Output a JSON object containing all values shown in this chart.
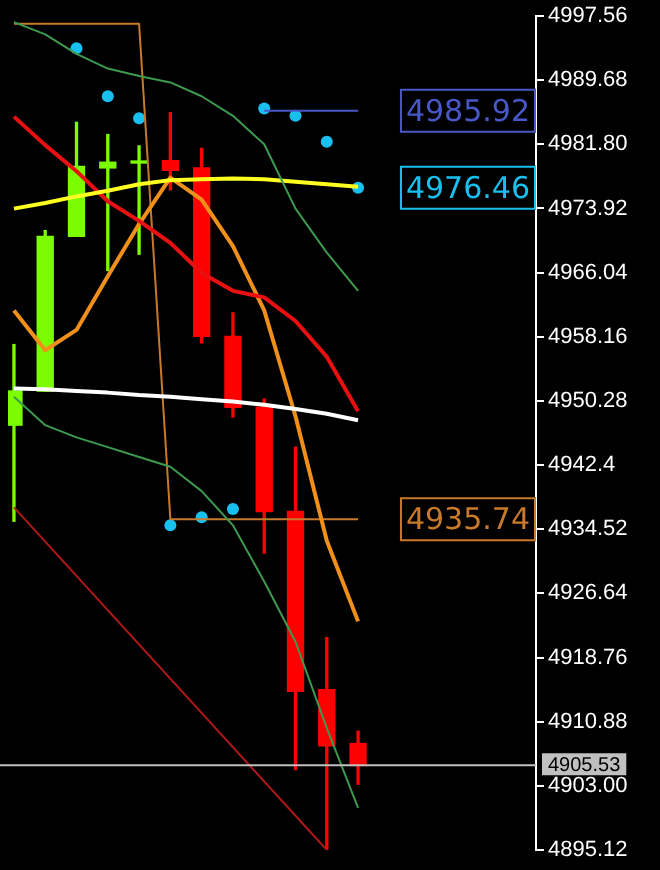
{
  "chart_data": {
    "type": "candlestick",
    "categories": [
      null,
      null,
      null,
      null,
      null,
      null,
      null,
      null,
      null,
      null,
      null,
      null
    ],
    "ohlc": [
      [
        4947.3,
        4957.2,
        4935.5,
        4951.5
      ],
      [
        4951.5,
        4971.2,
        4951.5,
        4970.5
      ],
      [
        4970.5,
        4984.5,
        4970.5,
        4979.1
      ],
      [
        4978.9,
        4983.0,
        4966.3,
        4979.6
      ],
      [
        4979.5,
        4981.6,
        4968.3,
        4979.6
      ],
      [
        4979.8,
        4985.7,
        4976.2,
        4978.6
      ],
      [
        4978.9,
        4981.3,
        4957.4,
        4958.2
      ],
      [
        4958.2,
        4961.1,
        4948.3,
        4949.5
      ],
      [
        4949.5,
        4950.5,
        4931.6,
        4936.7
      ],
      [
        4936.7,
        4944.6,
        4905.0,
        4914.6
      ],
      [
        4914.8,
        4921.2,
        4895.12,
        4907.9
      ],
      [
        4908.2,
        4909.7,
        4903.2,
        4905.5
      ]
    ],
    "colors": [
      "#7cfc00",
      "#7cfc00",
      "#7cfc00",
      "#7cfc00",
      "#7cfc00",
      "#ff0000",
      "#ff0000",
      "#ff0000",
      "#ff0000",
      "#ff0000",
      "#ff0000",
      "#ff0000"
    ],
    "series": [
      {
        "type": "line",
        "color": "#3c9a50",
        "values": [
          4996.8,
          4995.3,
          4992.9,
          4991.1,
          4990.2,
          4989.4,
          4987.7,
          4985.3,
          4981.8,
          4973.9,
          4968.5,
          4963.8
        ]
      },
      {
        "type": "line",
        "color": "#3c9a50",
        "values": [
          4950.8,
          4947.3,
          4945.8,
          4944.6,
          4943.4,
          4942.2,
          4939.2,
          4935.0,
          4928.1,
          4920.7,
          4910.1,
          4900.3
        ]
      },
      {
        "type": "line",
        "color": "#ffff20",
        "values": [
          4973.9,
          4974.6,
          4975.4,
          4976.1,
          4976.9,
          4977.4,
          4977.5,
          4977.6,
          4977.5,
          4977.2,
          4976.9,
          4976.6
        ]
      },
      {
        "type": "line",
        "color": "#ffffff",
        "values": [
          4951.8,
          4951.7,
          4951.5,
          4951.3,
          4951.0,
          4950.8,
          4950.5,
          4950.2,
          4949.8,
          4949.3,
          4948.7,
          4947.9
        ]
      },
      {
        "type": "line",
        "color": "#e81010",
        "values": [
          4985.2,
          4981.7,
          4978.5,
          4974.8,
          4972.4,
          4969.7,
          4966.0,
          4963.8,
          4963.0,
          4960.1,
          4955.7,
          4949.0
        ]
      },
      {
        "type": "line",
        "color": "#f0901a",
        "values": [
          4961.4,
          4956.5,
          4959.0,
          4965.6,
          4972.0,
          4977.7,
          4975.0,
          4969.3,
          4961.4,
          4948.4,
          4933.1,
          4923.2
        ]
      },
      {
        "type": "line",
        "color": "#b01818",
        "values": [
          4937.2,
          null,
          null,
          null,
          null,
          null,
          null,
          null,
          null,
          null,
          4895.12,
          null
        ]
      },
      {
        "type": "line",
        "color": "#c87a2a",
        "values": [
          4996.6,
          4996.6,
          4996.6,
          4996.6,
          4996.6,
          4935.74,
          4935.74,
          4935.74,
          4935.74,
          4935.74,
          4935.74,
          4935.74
        ],
        "value_labels": [
          null,
          null,
          null,
          null,
          null,
          null,
          null,
          null,
          null,
          null,
          null,
          "4935.74"
        ]
      },
      {
        "type": "line",
        "color": "#4858c8",
        "values": [
          null,
          null,
          null,
          null,
          null,
          null,
          null,
          null,
          4985.92,
          4985.92,
          4985.92,
          4985.92
        ],
        "value_labels": [
          null,
          null,
          null,
          null,
          null,
          null,
          null,
          null,
          null,
          null,
          null,
          "4985.92"
        ]
      },
      {
        "type": "scatter",
        "marker": "circle",
        "color": "#18c0f0",
        "values": [
          null,
          null,
          4993.6,
          4987.7,
          4985.0,
          4935.0,
          4936.0,
          4937.0,
          4986.2,
          4985.3,
          4982.1,
          4976.46
        ],
        "value_labels": [
          null,
          null,
          null,
          null,
          null,
          null,
          null,
          null,
          null,
          null,
          null,
          "4976.46"
        ]
      }
    ],
    "ylim": [
      4895.12,
      4997.56
    ],
    "yticks": [
      4997.56,
      4989.68,
      {
        "value": 4981.8,
        "label": "4981.80"
      },
      4973.92,
      4966.04,
      4958.16,
      4950.28,
      4942.4,
      4934.52,
      4926.64,
      4918.76,
      4910.88,
      {
        "value": 4903,
        "label": "4903.00"
      },
      4895.12
    ],
    "ref_lines": [
      {
        "axis": "y",
        "value": 4905.53,
        "label": "4905.53",
        "color": "#c0c0c0"
      }
    ],
    "tick_labels": "y",
    "grid": false,
    "legend": false
  }
}
